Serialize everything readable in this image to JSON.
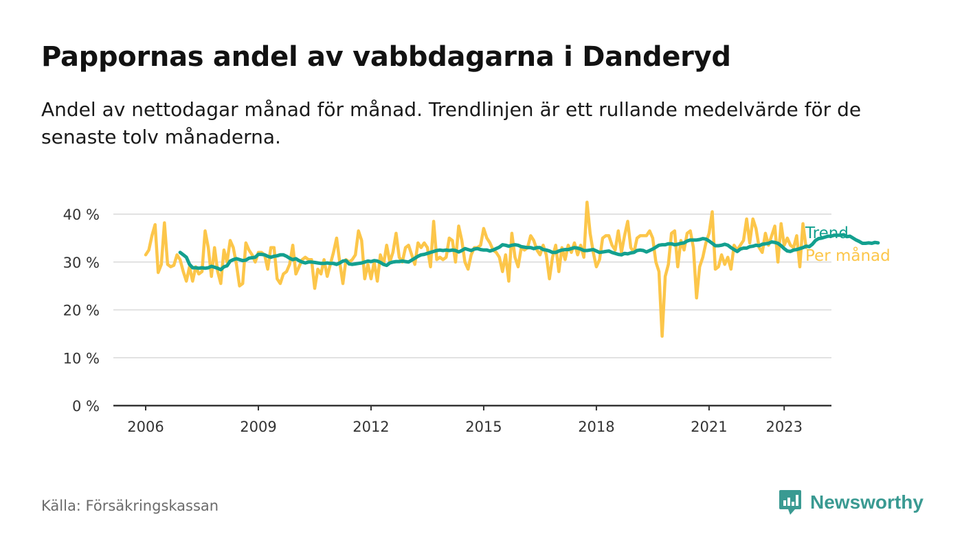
{
  "header": {
    "title": "Pappornas andel av vabbdagarna i Danderyd",
    "subtitle": "Andel av nettodagar månad för månad. Trendlinjen är ett rullande medelvärde för de senaste tolv månaderna."
  },
  "footer": {
    "source": "Källa: Försäkringskassan",
    "brand": "Newsworthy",
    "brand_icon": "newsworthy-logo-icon"
  },
  "colors": {
    "trend": "#13a08f",
    "monthly": "#fcc64a",
    "grid": "#d9d9d9",
    "axis": "#333333",
    "brand": "#3a9a92"
  },
  "chart_data": {
    "type": "line",
    "ylim": [
      0,
      40
    ],
    "yticks": [
      0,
      10,
      20,
      30,
      40
    ],
    "ytick_labels": [
      "0 %",
      "10 %",
      "20 %",
      "30 %",
      "40 %"
    ],
    "xlim": [
      "2006-01",
      "2025-02"
    ],
    "xticks": [
      "2006-01",
      "2009-01",
      "2012-01",
      "2015-01",
      "2018-01",
      "2021-01",
      "2023-01"
    ],
    "xtick_labels": [
      "2006",
      "2009",
      "2012",
      "2015",
      "2018",
      "2021",
      "2023"
    ],
    "grid": true,
    "legend": "end-of-lines",
    "series": [
      {
        "name": "Per månad",
        "color": "#fcc64a",
        "start": "2006-01",
        "values": [
          31.5,
          32.5,
          35.5,
          37.8,
          27.8,
          29.5,
          38.2,
          29.5,
          29,
          29.3,
          31.5,
          30.5,
          28,
          26,
          29,
          26,
          29,
          27.5,
          28,
          36.5,
          33,
          27,
          33,
          28,
          25.5,
          32.5,
          30,
          34.5,
          33,
          29.5,
          25,
          25.5,
          34,
          32.5,
          31.5,
          30,
          32,
          32,
          31.5,
          28.5,
          33,
          33,
          26.5,
          25.5,
          27.5,
          28,
          29.5,
          33.5,
          27.5,
          29,
          30.5,
          31,
          30.5,
          30.5,
          24.5,
          28.5,
          27.5,
          30.5,
          27,
          29.5,
          32,
          35,
          30,
          25.5,
          30.5,
          30,
          30.5,
          31.5,
          36.5,
          34.5,
          26.5,
          29.5,
          26.5,
          30,
          26,
          31.5,
          29.5,
          33.5,
          30,
          32,
          36,
          31,
          30,
          33,
          33.5,
          31.5,
          29.5,
          34,
          33,
          34,
          33,
          29,
          38.5,
          30.5,
          31,
          30.5,
          31,
          35,
          34.5,
          30,
          37.5,
          34.5,
          30,
          28.5,
          31.5,
          33,
          33,
          33.5,
          37,
          35,
          34,
          32.5,
          32,
          31,
          28,
          31.5,
          26,
          36,
          31,
          29,
          33,
          32.5,
          33,
          35.5,
          34.5,
          32.5,
          31.5,
          33.5,
          31.5,
          26.5,
          31,
          33.5,
          28,
          33,
          30.5,
          33.5,
          32,
          34,
          31.5,
          33.5,
          31,
          42.5,
          36,
          32,
          29,
          30.5,
          35,
          35.5,
          35.5,
          33.5,
          32.5,
          36.5,
          32,
          35.5,
          38.5,
          33,
          32,
          35,
          35.5,
          35.5,
          35.5,
          36.5,
          35,
          30,
          28,
          14.5,
          27,
          29.5,
          36,
          36.5,
          29,
          34.5,
          32.5,
          36,
          36.5,
          33,
          22.5,
          29,
          31,
          34,
          36,
          40.5,
          28.5,
          29,
          31.5,
          29.5,
          31,
          28.5,
          33.5,
          32.5,
          33.5,
          34.5,
          39,
          34,
          39,
          37,
          33,
          32,
          36,
          33.5,
          35.5,
          37.5,
          30,
          38,
          33.5,
          35,
          33.5,
          33,
          35.5,
          29,
          38,
          33
        ]
      },
      {
        "name": "Trend",
        "color": "#13a08f",
        "start": "2006-12",
        "values": [
          32,
          31.5,
          31,
          29.5,
          28.8,
          28.8,
          28.7,
          28.8,
          28.7,
          28.8,
          29.1,
          28.9,
          28.7,
          28.4,
          29,
          29.2,
          30.2,
          30.5,
          30.7,
          30.5,
          30.3,
          30.4,
          30.8,
          30.9,
          31,
          31.6,
          31.6,
          31.5,
          31.2,
          31,
          31.2,
          31.3,
          31.5,
          31.5,
          31.2,
          30.8,
          30.5,
          30.7,
          30.3,
          30.0,
          29.8,
          30.0,
          30.0,
          29.9,
          29.8,
          29.7,
          29.7,
          29.8,
          29.7,
          29.7,
          29.5,
          29.8,
          30.2,
          30.3,
          29.6,
          29.5,
          29.6,
          29.7,
          29.8,
          30.0,
          30.2,
          30.1,
          30.3,
          30.2,
          29.9,
          29.5,
          29.3,
          29.8,
          30.0,
          30.1,
          30.1,
          30.2,
          30.1,
          30.0,
          30.4,
          30.8,
          31.2,
          31.5,
          31.6,
          31.8,
          32.0,
          32.2,
          32.4,
          32.5,
          32.4,
          32.5,
          32.4,
          32.5,
          32.4,
          32.1,
          32.4,
          32.8,
          32.6,
          32.4,
          32.7,
          32.8,
          32.6,
          32.5,
          32.5,
          32.3,
          32.5,
          32.8,
          33.1,
          33.6,
          33.5,
          33.3,
          33.5,
          33.6,
          33.5,
          33.2,
          33.1,
          33.0,
          33.0,
          32.8,
          33.0,
          33.0,
          32.6,
          32.5,
          32.3,
          32.0,
          32.0,
          32.3,
          32.5,
          32.6,
          32.6,
          32.8,
          33.0,
          32.9,
          32.7,
          32.4,
          32.4,
          32.5,
          32.6,
          32.3,
          32.0,
          32.1,
          32.2,
          32.3,
          32.0,
          31.8,
          31.6,
          31.5,
          31.8,
          31.7,
          31.9,
          32.0,
          32.4,
          32.5,
          32.4,
          32.1,
          32.4,
          32.7,
          33.1,
          33.5,
          33.6,
          33.6,
          33.8,
          33.8,
          33.6,
          33.7,
          33.9,
          34.0,
          34.4,
          34.6,
          34.6,
          34.6,
          34.7,
          34.9,
          34.8,
          34.4,
          33.9,
          33.4,
          33.4,
          33.5,
          33.7,
          33.5,
          33.0,
          32.6,
          32.2,
          32.7,
          32.9,
          32.9,
          33.2,
          33.3,
          33.5,
          33.4,
          33.7,
          33.8,
          33.9,
          34.2,
          34.1,
          33.9,
          33.4,
          32.8,
          32.3,
          32.2,
          32.5,
          32.6,
          32.8,
          33.0,
          33.3,
          33.2,
          33.7,
          34.5,
          34.9,
          35.0,
          35.2,
          35.4,
          35.4,
          35.6,
          35.6,
          35.6,
          35.7,
          35.3,
          35.4,
          35.0,
          34.6,
          34.3,
          33.9,
          33.9,
          34.0,
          33.9,
          34.1,
          34.0
        ]
      }
    ]
  }
}
